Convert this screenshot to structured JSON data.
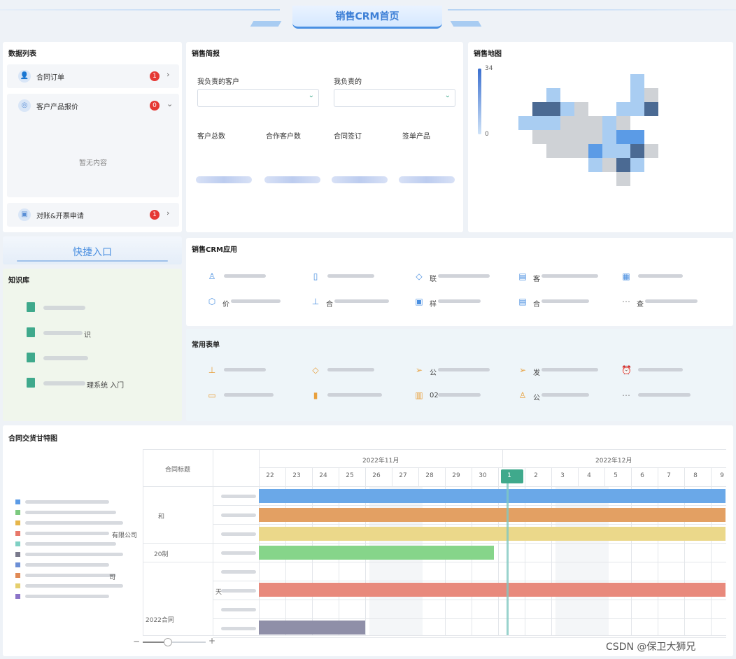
{
  "header": {
    "title": "销售CRM首页"
  },
  "data_list": {
    "title": "数据列表",
    "items": [
      {
        "label": "合同订单",
        "badge": "1",
        "arrow": "›"
      },
      {
        "label": "客户产品报价",
        "badge": "0",
        "arrow": "⌄"
      },
      {
        "label": "对账&开票申请",
        "badge": "1",
        "arrow": "›"
      }
    ],
    "empty_text": "暂无内容"
  },
  "quick_entry": {
    "label": "快捷入口"
  },
  "knowledge": {
    "title": "知识库",
    "items": [
      {
        "text": ""
      },
      {
        "text": "识"
      },
      {
        "text": ""
      },
      {
        "text": "理系统 入门"
      }
    ]
  },
  "sales_brief": {
    "title": "销售简报",
    "filter1_label": "我负责的客户",
    "filter2_label": "我负责的",
    "stats": [
      "客户总数",
      "合作客户数",
      "合同签订",
      "签单产品"
    ]
  },
  "sales_map": {
    "title": "销售地图",
    "legend_max": "34",
    "legend_min": "0",
    "colors": {
      "dark": "#4b6a93",
      "blue": "#5b9be6",
      "light": "#a9cdf2",
      "grey": "#cfd2d6"
    }
  },
  "crm_apps": {
    "title": "销售CRM应用",
    "items": [
      {
        "icon": "user-icon",
        "text": ""
      },
      {
        "icon": "book-icon",
        "text": ""
      },
      {
        "icon": "tag-icon",
        "text": "联"
      },
      {
        "icon": "doc-icon",
        "text": "客"
      },
      {
        "icon": "calendar-icon",
        "text": ""
      },
      {
        "icon": "gear-icon",
        "text": "价"
      },
      {
        "icon": "stamp-icon",
        "text": "合"
      },
      {
        "icon": "box-icon",
        "text": "样"
      },
      {
        "icon": "file-icon",
        "text": "合"
      },
      {
        "icon": "more-icon",
        "text": "查"
      }
    ]
  },
  "common_forms": {
    "title": "常用表单",
    "items": [
      {
        "icon": "stamp-icon",
        "text": ""
      },
      {
        "icon": "tag-icon",
        "text": ""
      },
      {
        "icon": "send-icon",
        "text": "公"
      },
      {
        "icon": "send-icon",
        "text": "发"
      },
      {
        "icon": "alarm-icon",
        "text": ""
      },
      {
        "icon": "monitor-icon",
        "text": ""
      },
      {
        "icon": "chart-icon",
        "text": ""
      },
      {
        "icon": "clipboard-icon",
        "text": "02"
      },
      {
        "icon": "user-icon",
        "text": "公"
      },
      {
        "icon": "more-icon",
        "text": ""
      }
    ]
  },
  "gantt": {
    "title": "合同交货甘特图",
    "col_header": "合同标题",
    "month1": "2022年11月",
    "month2": "2022年12月",
    "days": [
      "22",
      "23",
      "24",
      "25",
      "26",
      "27",
      "28",
      "29",
      "30",
      "1",
      "2",
      "3",
      "4",
      "5",
      "6",
      "7",
      "8",
      "9"
    ],
    "today": "1",
    "group_labels": [
      "和",
      "20制",
      "2022合同"
    ],
    "row_label_tian": "天",
    "legend": [
      {
        "color": "#5b9be6",
        "text": ""
      },
      {
        "color": "#7cc97f",
        "text": ""
      },
      {
        "color": "#e6b64a",
        "text": ""
      },
      {
        "color": "#e8786a",
        "text": "有限公司"
      },
      {
        "color": "#7fd0c4",
        "text": ""
      },
      {
        "color": "#7a7a8c",
        "text": ""
      },
      {
        "color": "#6c8fd6",
        "text": ""
      },
      {
        "color": "#e08a55",
        "text": "司"
      },
      {
        "color": "#e5cf6e",
        "text": ""
      },
      {
        "color": "#8b74c8",
        "text": ""
      }
    ],
    "bars": [
      {
        "color": "#6aa8e8",
        "start": 0,
        "end": 18
      },
      {
        "color": "#e3a063",
        "start": 0,
        "end": 18
      },
      {
        "color": "#ebd88a",
        "start": 0,
        "end": 18
      },
      {
        "color": "#86d58a",
        "start": 0,
        "end": 9
      },
      {
        "color": "#e8897c",
        "start": 0,
        "end": 18
      },
      {
        "color": "#8f8fa8",
        "start": 0,
        "end": 4
      }
    ],
    "zoom_minus": "−",
    "zoom_plus": "+"
  },
  "watermark": "CSDN @保卫大狮兄"
}
